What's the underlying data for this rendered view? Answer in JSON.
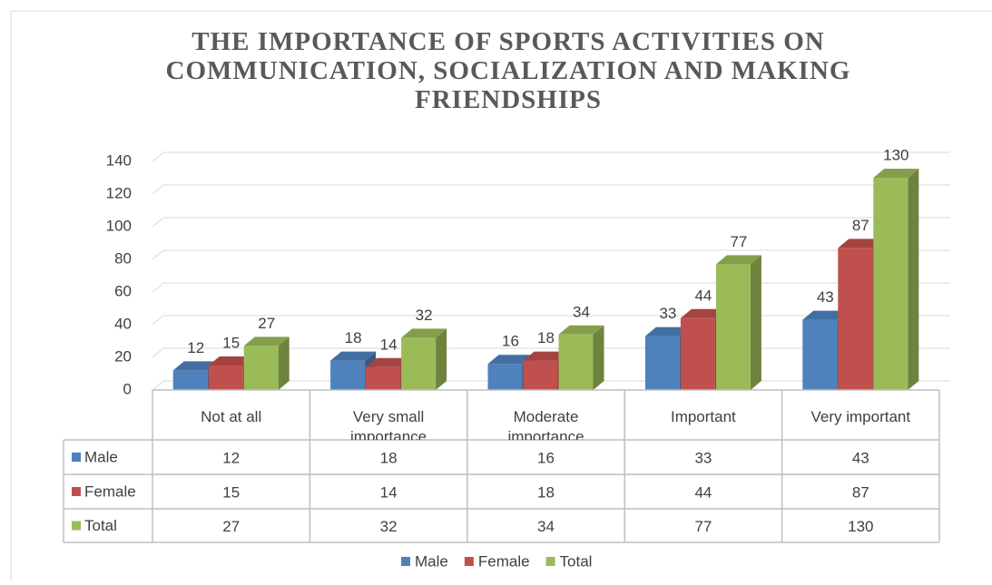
{
  "chart_data": {
    "type": "bar",
    "title": "THE IMPORTANCE OF SPORTS ACTIVITIES ON COMMUNICATION, SOCIALIZATION AND MAKING FRIENDSHIPS",
    "categories": [
      "Not at all",
      "Very small importance",
      "Moderate importance",
      "Important",
      "Very important"
    ],
    "series": [
      {
        "name": "Male",
        "color": "#4f81bd",
        "values": [
          12,
          18,
          16,
          33,
          43
        ]
      },
      {
        "name": "Female",
        "color": "#c0504d",
        "values": [
          15,
          14,
          18,
          44,
          87
        ]
      },
      {
        "name": "Total",
        "color": "#9bbb59",
        "values": [
          27,
          32,
          34,
          77,
          130
        ]
      }
    ],
    "ylim": [
      0,
      140
    ],
    "yticks": [
      0,
      20,
      40,
      60,
      80,
      100,
      120,
      140
    ],
    "grid": true,
    "data_table": true,
    "legend": "bottom"
  }
}
